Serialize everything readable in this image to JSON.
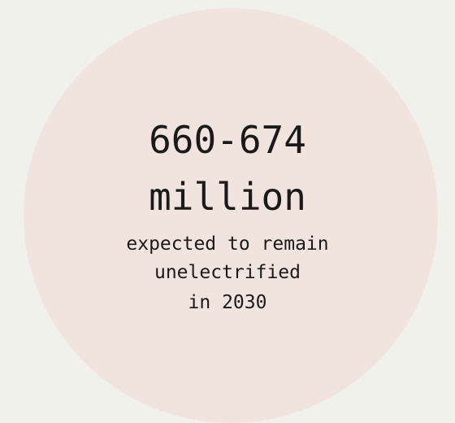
{
  "stat": {
    "figure_line1": "660-674",
    "figure_line2": "million",
    "caption_line1": "expected to remain",
    "caption_line2": "unelectrified",
    "caption_line3": "in 2030"
  },
  "colors": {
    "background": "#f1f1ec",
    "circle": "#f1e4df",
    "text": "#1a1a1a"
  }
}
